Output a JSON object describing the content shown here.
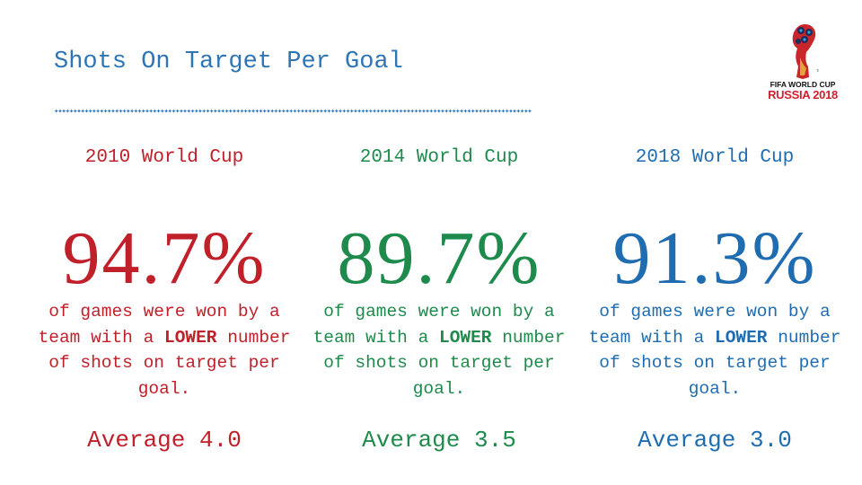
{
  "title": "Shots On Target Per Goal",
  "logo": {
    "line1": "FIFA WORLD CUP",
    "line2": "RUSSIA 2018",
    "tm": "TM"
  },
  "colors": {
    "title": "#2e75b6",
    "c2010": "#c0202a",
    "c2014": "#1e8a4c",
    "c2018": "#1f6db0"
  },
  "columns": [
    {
      "heading": "2010 World Cup",
      "percent": "94.7%",
      "desc_pre": "of games were won by a team with a ",
      "desc_bold": "LOWER",
      "desc_post": " number of shots on target per goal.",
      "average": "Average 4.0"
    },
    {
      "heading": "2014 World Cup",
      "percent": "89.7%",
      "desc_pre": "of games were won by a team with a ",
      "desc_bold": "LOWER",
      "desc_post": " number of shots on target per goal.",
      "average": "Average 3.5"
    },
    {
      "heading": "2018 World Cup",
      "percent": "91.3%",
      "desc_pre": "of games were won by a team with a ",
      "desc_bold": "LOWER",
      "desc_post": " number of shots on target per goal.",
      "average": "Average 3.0"
    }
  ]
}
